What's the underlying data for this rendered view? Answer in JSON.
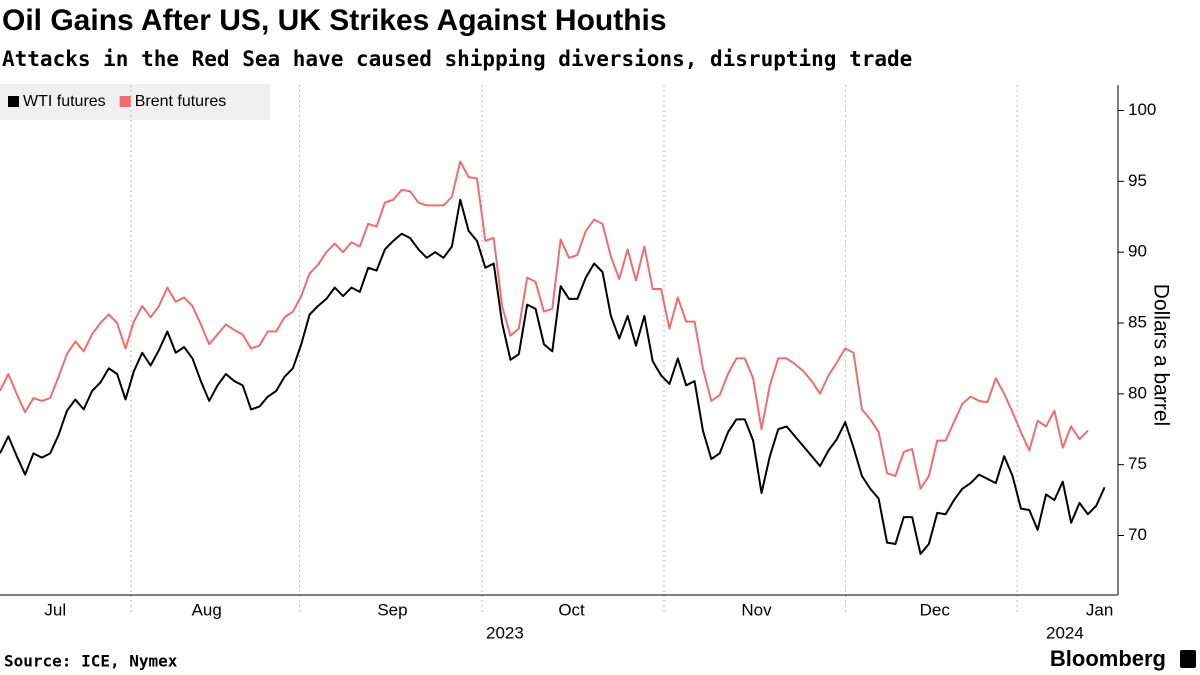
{
  "chart_data": {
    "type": "line",
    "title": "Oil Gains After US, UK Strikes Against Houthis",
    "subtitle": "Attacks in the Red Sea have caused shipping diversions, disrupting trade",
    "y_axis_label": "Dollars a barrel",
    "source": "Source: ICE, Nymex",
    "brand": "Bloomberg",
    "year_labels": [
      "2023",
      "2024"
    ],
    "legend": "top-left",
    "xlim": [
      0,
      133.6
    ],
    "xticks": [
      {
        "value": 6.6,
        "label": "Jul"
      },
      {
        "value": 24.7,
        "label": "Aug"
      },
      {
        "value": 46.9,
        "label": "Sep"
      },
      {
        "value": 68.3,
        "label": "Oct"
      },
      {
        "value": 90.4,
        "label": "Nov"
      },
      {
        "value": 111.7,
        "label": "Dec"
      },
      {
        "value": 131.4,
        "label": "Jan"
      }
    ],
    "ylim": [
      65.8,
      101.8
    ],
    "yticks": [
      70,
      75,
      80,
      85,
      90,
      95,
      100
    ],
    "grid": "x",
    "series": [
      {
        "name": "WTI futures",
        "color": "#000000",
        "values": [
          75.8,
          77.0,
          75.6,
          74.3,
          75.8,
          75.5,
          75.8,
          77.1,
          78.8,
          79.6,
          78.9,
          80.2,
          80.8,
          81.8,
          81.4,
          79.6,
          81.6,
          82.9,
          82.0,
          83.1,
          84.4,
          82.9,
          83.3,
          82.5,
          80.9,
          79.5,
          80.6,
          81.4,
          80.9,
          80.6,
          78.9,
          79.1,
          79.8,
          80.2,
          81.2,
          81.8,
          83.5,
          85.6,
          86.2,
          86.7,
          87.5,
          86.9,
          87.5,
          87.2,
          88.9,
          88.7,
          90.2,
          90.8,
          91.3,
          91.0,
          90.2,
          89.6,
          90.0,
          89.6,
          90.4,
          93.7,
          91.5,
          90.8,
          88.9,
          89.2,
          85.0,
          82.4,
          82.8,
          86.3,
          86.0,
          83.5,
          83.0,
          87.6,
          86.7,
          86.7,
          88.2,
          89.2,
          88.6,
          85.5,
          83.9,
          85.5,
          83.4,
          85.5,
          82.3,
          81.3,
          80.7,
          82.5,
          80.6,
          80.9,
          77.4,
          75.4,
          75.8,
          77.3,
          78.2,
          78.2,
          76.7,
          73.0,
          75.6,
          77.5,
          77.7,
          77.0,
          76.3,
          75.6,
          74.9,
          76.0,
          76.8,
          78.0,
          76.2,
          74.2,
          73.3,
          72.6,
          69.5,
          69.4,
          71.3,
          71.3,
          68.7,
          69.4,
          71.6,
          71.5,
          72.5,
          73.3,
          73.7,
          74.3,
          74.0,
          73.7,
          75.6,
          74.2,
          71.9,
          71.8,
          70.4,
          72.9,
          72.5,
          73.8,
          70.9,
          72.3,
          71.5,
          72.1,
          73.4
        ]
      },
      {
        "name": "Brent futures",
        "color": "#f06d6d",
        "values": [
          80.2,
          81.4,
          80.0,
          78.7,
          79.7,
          79.5,
          79.7,
          81.2,
          82.8,
          83.7,
          83.0,
          84.2,
          85.0,
          85.6,
          85.0,
          83.2,
          85.1,
          86.2,
          85.4,
          86.2,
          87.5,
          86.5,
          86.8,
          86.2,
          84.9,
          83.5,
          84.2,
          84.9,
          84.5,
          84.2,
          83.2,
          83.4,
          84.4,
          84.4,
          85.4,
          85.8,
          86.9,
          88.5,
          89.1,
          90.0,
          90.6,
          90.0,
          90.7,
          90.4,
          92.0,
          91.8,
          93.5,
          93.7,
          94.4,
          94.3,
          93.5,
          93.3,
          93.3,
          93.3,
          93.9,
          96.4,
          95.3,
          95.2,
          90.8,
          91.0,
          86.2,
          84.1,
          84.6,
          88.2,
          87.9,
          85.8,
          86.0,
          90.9,
          89.6,
          89.8,
          91.5,
          92.3,
          92.0,
          89.7,
          88.1,
          90.2,
          88.0,
          90.4,
          87.4,
          87.4,
          84.6,
          86.8,
          85.1,
          85.1,
          81.8,
          79.5,
          79.9,
          81.4,
          82.5,
          82.5,
          81.1,
          77.5,
          80.6,
          82.5,
          82.5,
          82.1,
          81.6,
          80.9,
          80.0,
          81.3,
          82.2,
          83.2,
          82.9,
          78.9,
          78.2,
          77.3,
          74.4,
          74.2,
          75.9,
          76.1,
          73.3,
          74.2,
          76.7,
          76.7,
          78.0,
          79.3,
          79.8,
          79.5,
          79.4,
          81.1,
          80.0,
          78.7,
          77.3,
          76.0,
          78.1,
          77.7,
          78.8,
          76.2,
          77.7,
          76.8,
          77.4
        ]
      }
    ]
  }
}
